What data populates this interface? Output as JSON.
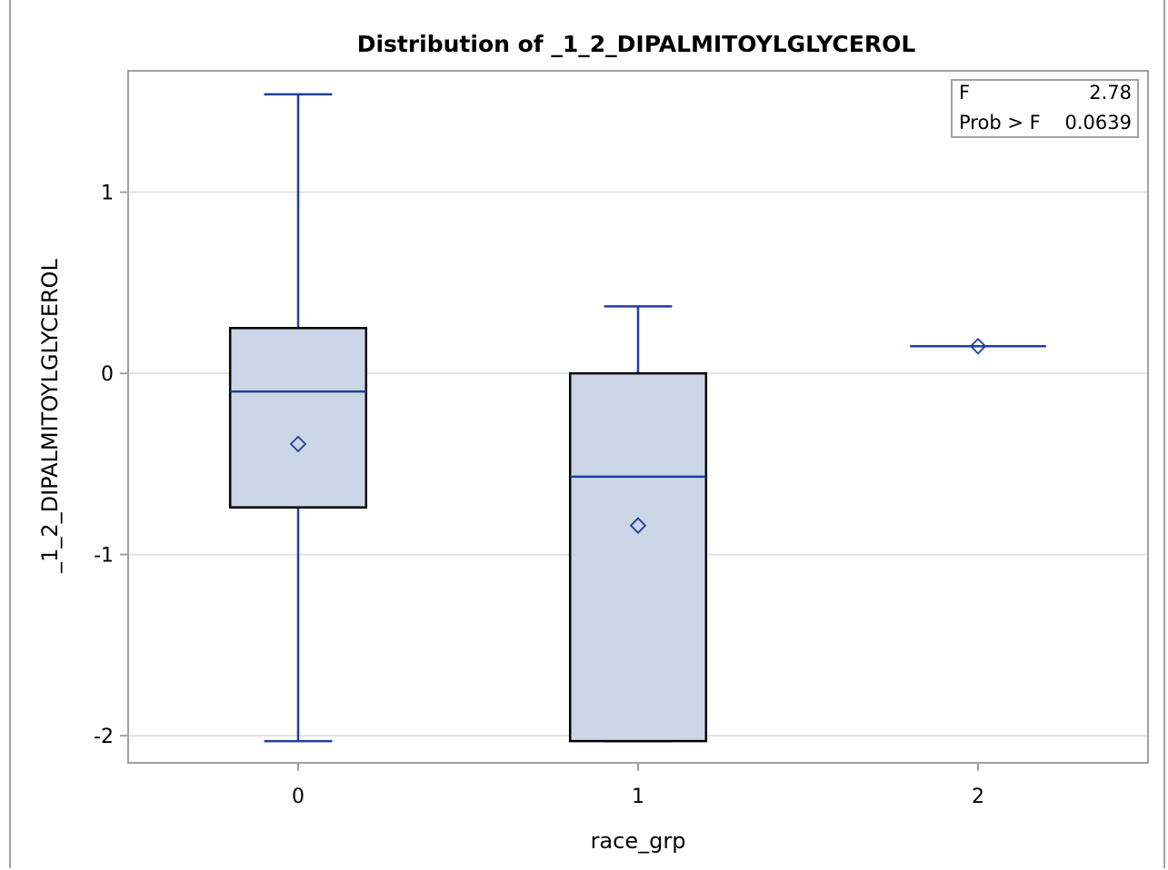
{
  "chart_data": {
    "type": "box",
    "title": "Distribution of _1_2_DIPALMITOYLGLYCEROL",
    "xlabel": "race_grp",
    "ylabel": "_1_2_DIPALMITOYLGLYCEROL",
    "categories": [
      "0",
      "1",
      "2"
    ],
    "ylim": [
      -2.15,
      1.67
    ],
    "yticks": [
      -2,
      -1,
      0,
      1
    ],
    "ytick_labels": [
      "-2",
      "-1",
      "0",
      "1"
    ],
    "grid": true,
    "boxes": [
      {
        "category": "0",
        "min": -2.03,
        "q1": -0.74,
        "median": -0.1,
        "q3": 0.25,
        "max": 1.54,
        "mean": -0.39
      },
      {
        "category": "1",
        "min": -2.03,
        "q1": -2.03,
        "median": -0.57,
        "q3": 0.0,
        "max": 0.37,
        "mean": -0.84
      },
      {
        "category": "2",
        "min": 0.15,
        "q1": 0.15,
        "median": 0.15,
        "q3": 0.15,
        "max": 0.15,
        "mean": 0.15
      }
    ],
    "stats_box": {
      "placement": "top-right",
      "rows": [
        {
          "label": "F",
          "value": "2.78"
        },
        {
          "label": "Prob > F",
          "value": "0.0639"
        }
      ]
    },
    "colors": {
      "box_fill": "#cbd6e6",
      "box_outline": "#000000",
      "whisker": "#1f3f99",
      "median": "#1f3f99",
      "mean_marker": "#1f3f99",
      "grid": "#e3e3e3",
      "axis": "#a0a0a0"
    }
  }
}
